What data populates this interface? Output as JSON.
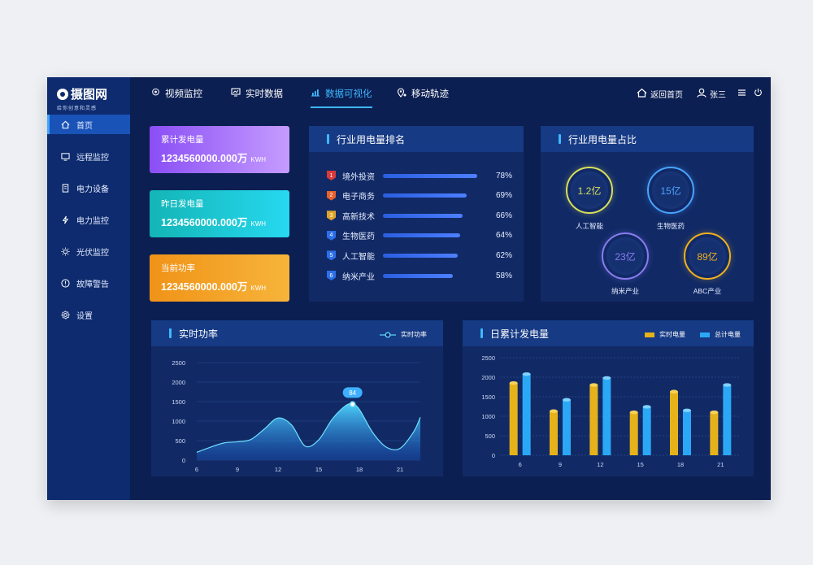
{
  "logo": {
    "name": "摄图网",
    "slogan": "给你创意和灵感"
  },
  "sidebar": {
    "items": [
      {
        "label": "首页",
        "icon": "home-icon"
      },
      {
        "label": "远程监控",
        "icon": "monitor-icon"
      },
      {
        "label": "电力设备",
        "icon": "device-icon"
      },
      {
        "label": "电力监控",
        "icon": "lightning-icon"
      },
      {
        "label": "光伏监控",
        "icon": "sun-icon"
      },
      {
        "label": "故障警告",
        "icon": "alert-icon"
      },
      {
        "label": "设置",
        "icon": "gear-icon"
      }
    ]
  },
  "topnav": {
    "tabs": [
      {
        "label": "视频监控",
        "icon": "camera-icon"
      },
      {
        "label": "实时数据",
        "icon": "screen-icon"
      },
      {
        "label": "数据可视化",
        "icon": "chart-icon"
      },
      {
        "label": "移动轨迹",
        "icon": "location-icon"
      }
    ],
    "home_label": "返回首页",
    "user_label": "张三"
  },
  "stats": [
    {
      "label": "累计发电量",
      "value": "1234560000.000万",
      "unit": "KWH"
    },
    {
      "label": "昨日发电量",
      "value": "1234560000.000万",
      "unit": "KWH"
    },
    {
      "label": "当前功率",
      "value": "1234560000.000万",
      "unit": "KWH"
    }
  ],
  "ranking": {
    "title": "行业用电量排名",
    "rows": [
      {
        "rank": "1",
        "name": "境外投资",
        "percent": 78,
        "percent_label": "78%",
        "color": "#d93a3a"
      },
      {
        "rank": "2",
        "name": "电子商务",
        "percent": 69,
        "percent_label": "69%",
        "color": "#e8612c"
      },
      {
        "rank": "3",
        "name": "高新技术",
        "percent": 66,
        "percent_label": "66%",
        "color": "#e0a42a"
      },
      {
        "rank": "4",
        "name": "生物医药",
        "percent": 64,
        "percent_label": "64%",
        "color": "#2d6fe8"
      },
      {
        "rank": "5",
        "name": "人工智能",
        "percent": 62,
        "percent_label": "62%",
        "color": "#2d6fe8"
      },
      {
        "rank": "6",
        "name": "纳米产业",
        "percent": 58,
        "percent_label": "58%",
        "color": "#2d6fe8"
      }
    ]
  },
  "proportion": {
    "title": "行业用电量占比",
    "items": [
      {
        "value": "1.2亿",
        "label": "人工智能",
        "color": "#d8e05a"
      },
      {
        "value": "15亿",
        "label": "生物医药",
        "color": "#4aa3ff"
      },
      {
        "value": "23亿",
        "label": "纳米产业",
        "color": "#8a7cf0"
      },
      {
        "value": "89亿",
        "label": "ABC产业",
        "color": "#f0b020"
      }
    ]
  },
  "chart_data": [
    {
      "type": "area",
      "title": "实时功率",
      "legend": [
        "实时功率"
      ],
      "xticks": [
        6,
        9,
        12,
        15,
        18,
        21
      ],
      "yticks": [
        0,
        500,
        1000,
        1500,
        2000,
        2500
      ],
      "ylim": [
        0,
        2500
      ],
      "xlim": [
        6,
        22.5
      ],
      "annotation": {
        "x": 17.5,
        "label": "84"
      },
      "x": [
        6,
        7,
        8,
        9,
        10,
        11,
        12,
        13,
        14,
        15,
        16,
        17,
        17.5,
        18,
        19,
        20,
        21,
        22,
        22.5
      ],
      "y": [
        200,
        330,
        440,
        470,
        530,
        800,
        1080,
        900,
        360,
        520,
        1050,
        1400,
        1430,
        1300,
        700,
        330,
        300,
        720,
        1100
      ]
    },
    {
      "type": "bar",
      "title": "日累计发电量",
      "categories": [
        "6",
        "9",
        "12",
        "15",
        "18",
        "21"
      ],
      "yticks": [
        0,
        500,
        1000,
        1500,
        2000,
        2500
      ],
      "ylim": [
        0,
        2500
      ],
      "series": [
        {
          "name": "实时电量",
          "color": "#e6b21a",
          "values": [
            1850,
            1130,
            1800,
            1100,
            1630,
            1100
          ]
        },
        {
          "name": "总计电量",
          "color": "#2aa8f5",
          "values": [
            2080,
            1420,
            1980,
            1240,
            1150,
            1800
          ]
        }
      ]
    }
  ]
}
